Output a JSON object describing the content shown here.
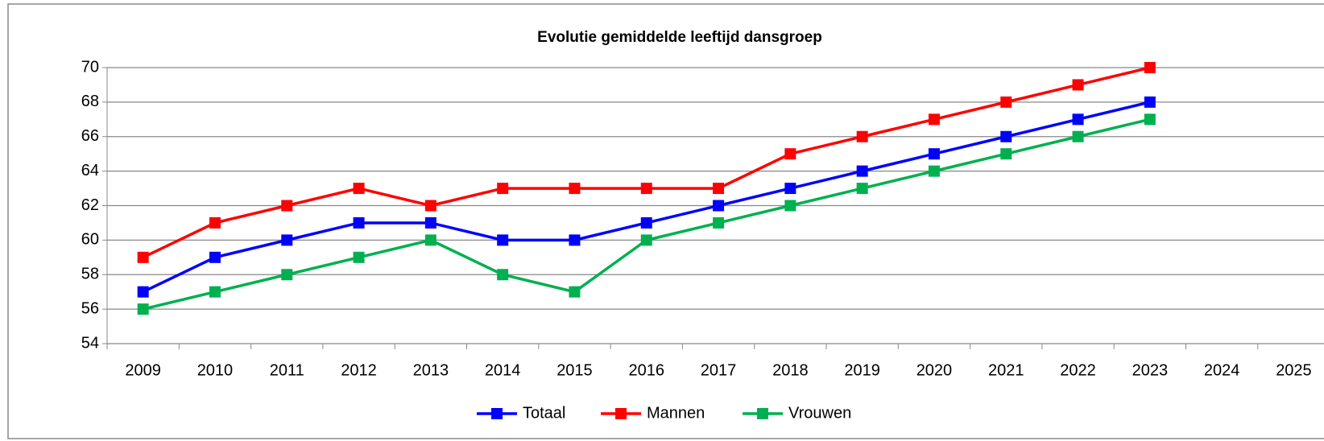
{
  "chart_data": {
    "type": "line",
    "title": "Evolutie gemiddelde leeftijd dansgroep",
    "categories": [
      "2009",
      "2010",
      "2011",
      "2012",
      "2013",
      "2014",
      "2015",
      "2016",
      "2017",
      "2018",
      "2019",
      "2020",
      "2021",
      "2022",
      "2023",
      "2024",
      "2025"
    ],
    "series": [
      {
        "name": "Totaal",
        "color": "#0000ff",
        "values": [
          57,
          59,
          60,
          61,
          61,
          60,
          60,
          61,
          62,
          63,
          64,
          65,
          66,
          67,
          68,
          null,
          null
        ]
      },
      {
        "name": "Mannen",
        "color": "#ff0000",
        "values": [
          59,
          61,
          62,
          63,
          62,
          63,
          63,
          63,
          63,
          65,
          66,
          67,
          68,
          69,
          70,
          null,
          null
        ]
      },
      {
        "name": "Vrouwen",
        "color": "#00b050",
        "values": [
          56,
          57,
          58,
          59,
          60,
          58,
          57,
          60,
          61,
          62,
          63,
          64,
          65,
          66,
          67,
          null,
          null
        ]
      }
    ],
    "ylim": [
      54,
      70
    ],
    "yticks": [
      54,
      56,
      58,
      60,
      62,
      64,
      66,
      68,
      70
    ],
    "grid": true,
    "legend": "bottom"
  }
}
